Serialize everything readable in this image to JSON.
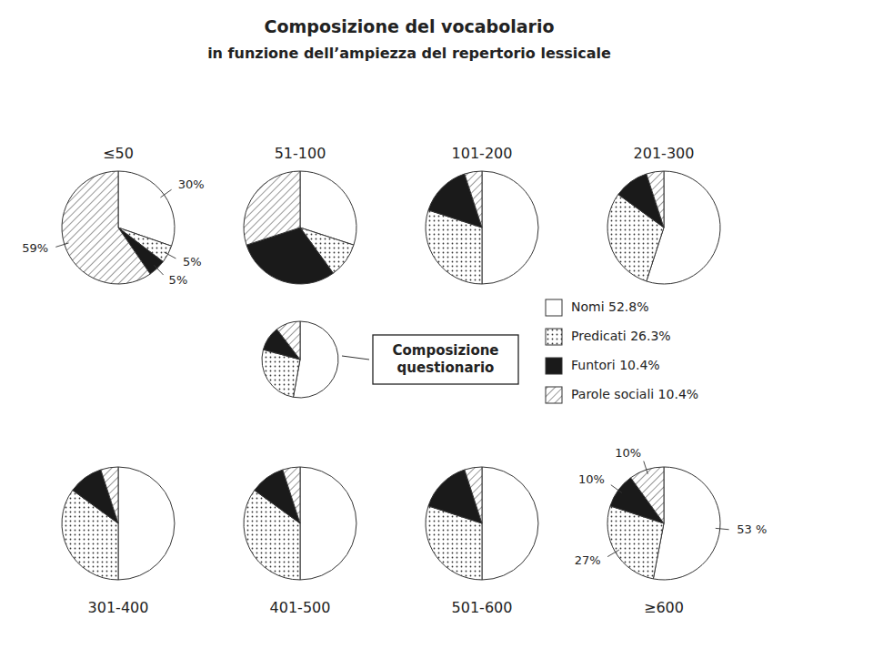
{
  "chart_data": [
    {
      "type": "pie",
      "title": "≤50",
      "values": [
        30,
        5,
        5,
        59
      ],
      "colors": [
        "white",
        "white",
        "#1a1a1a",
        "white"
      ],
      "data_labels": true,
      "value_labels": [
        "30%",
        "5%",
        "5%",
        "59%"
      ]
    },
    {
      "type": "pie",
      "title": "51-100",
      "values": [
        30,
        10,
        30,
        30
      ],
      "colors": [
        "white",
        "white",
        "#1a1a1a",
        "white"
      ]
    },
    {
      "type": "pie",
      "title": "101-200",
      "values": [
        50,
        30,
        15,
        5
      ],
      "colors": [
        "white",
        "white",
        "#1a1a1a",
        "white"
      ]
    },
    {
      "type": "pie",
      "title": "201-300",
      "values": [
        55,
        30,
        10,
        5
      ],
      "colors": [
        "white",
        "white",
        "#1a1a1a",
        "white"
      ]
    },
    {
      "type": "pie",
      "title": "301-400",
      "values": [
        50,
        35,
        10,
        5
      ],
      "colors": [
        "white",
        "white",
        "#1a1a1a",
        "white"
      ]
    },
    {
      "type": "pie",
      "title": "401-500",
      "values": [
        50,
        35,
        10,
        5
      ],
      "colors": [
        "white",
        "white",
        "#1a1a1a",
        "white"
      ]
    },
    {
      "type": "pie",
      "title": "501-600",
      "values": [
        50,
        30,
        15,
        5
      ],
      "colors": [
        "white",
        "white",
        "#1a1a1a",
        "white"
      ]
    },
    {
      "type": "pie",
      "title": "≥600",
      "values": [
        53,
        27,
        10,
        10
      ],
      "colors": [
        "white",
        "white",
        "#1a1a1a",
        "white"
      ],
      "data_labels": true,
      "value_labels": [
        "53 %",
        "27%",
        "10%",
        "10%"
      ]
    },
    {
      "type": "pie",
      "title": "Composizione del vocabolario",
      "subtitle": "in funzione dell’ampiezza del repertorio lessicale",
      "annotations": [
        "Composizione",
        "questionario"
      ],
      "categories": [
        "Nomi 52.8%",
        "Predicati 26.3%",
        "Funtori 10.4%",
        "Parole sociali 10.4%"
      ],
      "values": [
        52.8,
        26.3,
        10.4,
        10.4
      ],
      "colors": [
        "white",
        "white",
        "#1a1a1a",
        "white"
      ],
      "legend": "right"
    }
  ]
}
